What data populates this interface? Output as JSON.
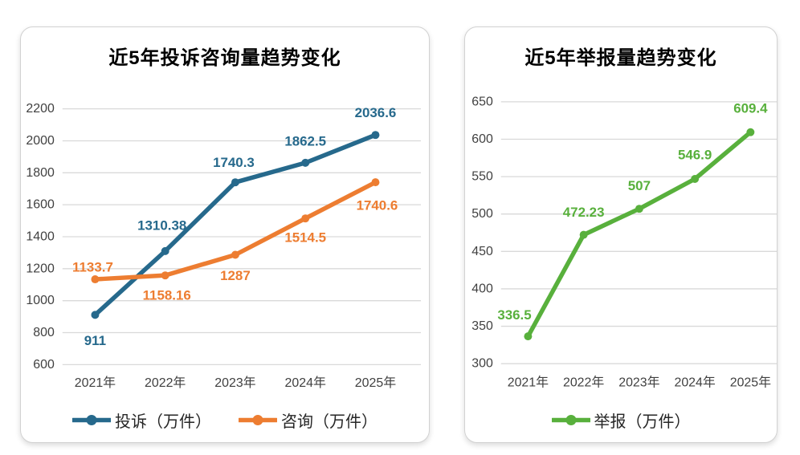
{
  "chart_data": [
    {
      "type": "line",
      "title": "近5年投诉咨询量趋势变化",
      "categories": [
        "2021年",
        "2022年",
        "2023年",
        "2024年",
        "2025年"
      ],
      "xlabel": "",
      "ylabel": "",
      "ylim": [
        600,
        2200
      ],
      "ytick_step": 200,
      "grid": true,
      "legend_position": "bottom",
      "series": [
        {
          "name": "投诉（万件）",
          "color": "#26698C",
          "values": [
            911,
            1310.38,
            1740.3,
            1862.5,
            2036.6
          ],
          "labels": [
            "911",
            "1310.38",
            "1740.3",
            "1862.5",
            "2036.6"
          ],
          "label_offsets": [
            [
              0,
              32
            ],
            [
              -4,
              -32
            ],
            [
              -2,
              -25
            ],
            [
              0,
              -27
            ],
            [
              0,
              -28
            ]
          ]
        },
        {
          "name": "咨询（万件）",
          "color": "#ED7D31",
          "values": [
            1133.7,
            1158.16,
            1287,
            1514.5,
            1740.6
          ],
          "labels": [
            "1133.7",
            "1158.16",
            "1287",
            "1514.5",
            "1740.6"
          ],
          "label_offsets": [
            [
              -3,
              -15
            ],
            [
              2,
              25
            ],
            [
              0,
              26
            ],
            [
              0,
              24
            ],
            [
              2,
              29
            ]
          ]
        }
      ]
    },
    {
      "type": "line",
      "title": "近5年举报量趋势变化",
      "categories": [
        "2021年",
        "2022年",
        "2023年",
        "2024年",
        "2025年"
      ],
      "xlabel": "",
      "ylabel": "",
      "ylim": [
        300,
        650
      ],
      "ytick_step": 50,
      "grid": true,
      "legend_position": "bottom",
      "series": [
        {
          "name": "举报（万件）",
          "color": "#58B03C",
          "values": [
            336.5,
            472.23,
            507,
            546.9,
            609.4
          ],
          "labels": [
            "336.5",
            "472.23",
            "507",
            "546.9",
            "609.4"
          ],
          "label_offsets": [
            [
              -17,
              -27
            ],
            [
              0,
              -28
            ],
            [
              0,
              -29
            ],
            [
              0,
              -30
            ],
            [
              0,
              -30
            ]
          ]
        }
      ]
    }
  ],
  "colors": {
    "gridline": "#D9D9D9",
    "axis_text": "#404040",
    "title_text": "#000000",
    "legend_text": "#262626",
    "card_border": "#D2D2D2",
    "background": "#FFFFFF"
  }
}
